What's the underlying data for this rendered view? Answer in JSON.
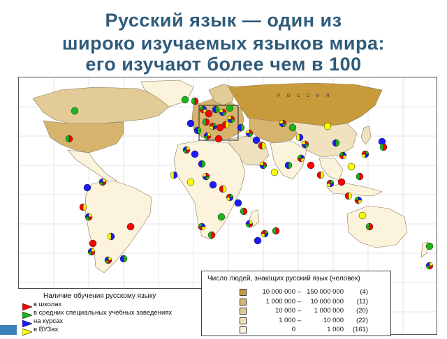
{
  "title": {
    "line1": "Русский язык — один из",
    "line2": "широко изучаемых языков мира:",
    "line3": "его изучают более чем в 100"
  },
  "map": {
    "country_label": "Р О С С И Я",
    "colors": {
      "ocean": "#ffffff",
      "level1": "#c99a3c",
      "level2": "#d7b46e",
      "level3": "#e3cb98",
      "level4": "#f0e2bf",
      "level5": "#fbf3dc",
      "grid": "#c8c8c8",
      "marker_red": "#ff0000",
      "marker_green": "#19b519",
      "marker_blue": "#1a1aff",
      "marker_yellow": "#ffff00"
    }
  },
  "legend_teaching": {
    "title": "Наличие обучения русскому языку",
    "items": [
      {
        "label": "в школах",
        "color": "#ff0000"
      },
      {
        "label": "в средних специальных учебных заведениях",
        "color": "#19b519"
      },
      {
        "label": "на курсах",
        "color": "#1a1aff"
      },
      {
        "label": "в ВУЗах",
        "color": "#ffff00"
      }
    ]
  },
  "legend_speakers": {
    "title": "Число людей, знающих русский язык (человек)",
    "rows": [
      {
        "from": "10 000 000",
        "dash": "–",
        "to": "150 000 000",
        "count": "(4)",
        "color": "#c99a3c"
      },
      {
        "from": "1 000 000",
        "dash": "–",
        "to": "10 000 000",
        "count": "(11)",
        "color": "#d7b46e"
      },
      {
        "from": "10 000",
        "dash": "–",
        "to": "1 000 000",
        "count": "(20)",
        "color": "#e3cb98"
      },
      {
        "from": "1 000",
        "dash": "–",
        "to": "10 000",
        "count": "(22)",
        "color": "#f0e2bf"
      },
      {
        "from": "0",
        "dash": "",
        "to": "1 000",
        "count": "(161)",
        "color": "#fbf3dc"
      }
    ]
  }
}
